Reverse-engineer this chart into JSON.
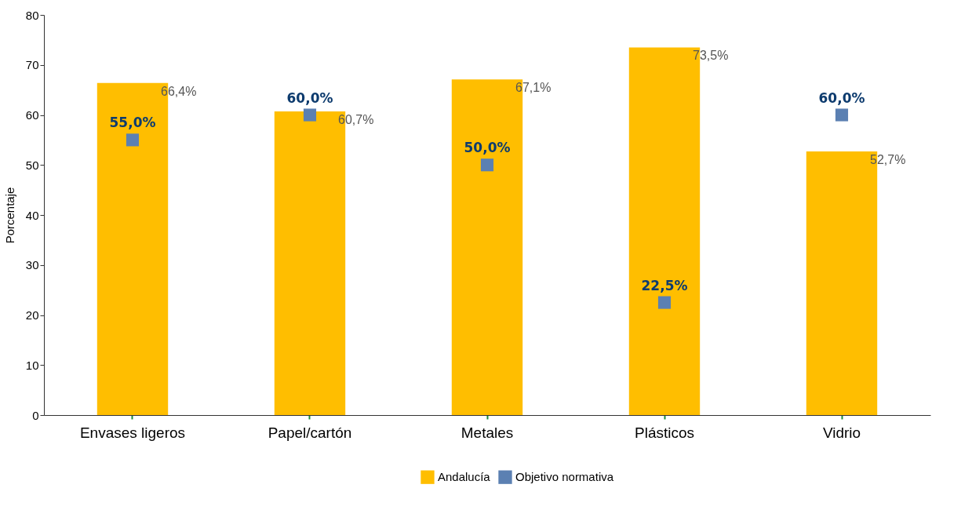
{
  "chart_data": {
    "type": "bar",
    "ylabel": "Porcentaje",
    "categories": [
      "Envases ligeros",
      "Papel/cartón",
      "Metales",
      "Plásticos",
      "Vidrio"
    ],
    "series": [
      {
        "name": "Andalucía",
        "type": "bar",
        "color": "#ffbe00",
        "values": [
          66.4,
          60.7,
          67.1,
          73.5,
          52.7
        ],
        "value_labels": [
          "66,4%",
          "60,7%",
          "67,1%",
          "73,5%",
          "52,7%"
        ]
      },
      {
        "name": "Objetivo normativa",
        "type": "scatter",
        "marker": "square",
        "color": "#5b80b2",
        "values": [
          55.0,
          60.0,
          50.0,
          22.5,
          60.0
        ],
        "value_labels": [
          "55,0%",
          "60,0%",
          "50,0%",
          "22,5%",
          "60,0%"
        ]
      }
    ],
    "ylim": [
      0,
      80
    ],
    "yticks": [
      0,
      10,
      20,
      30,
      40,
      50,
      60,
      70,
      80
    ],
    "grid": false,
    "legend": "bottom"
  }
}
